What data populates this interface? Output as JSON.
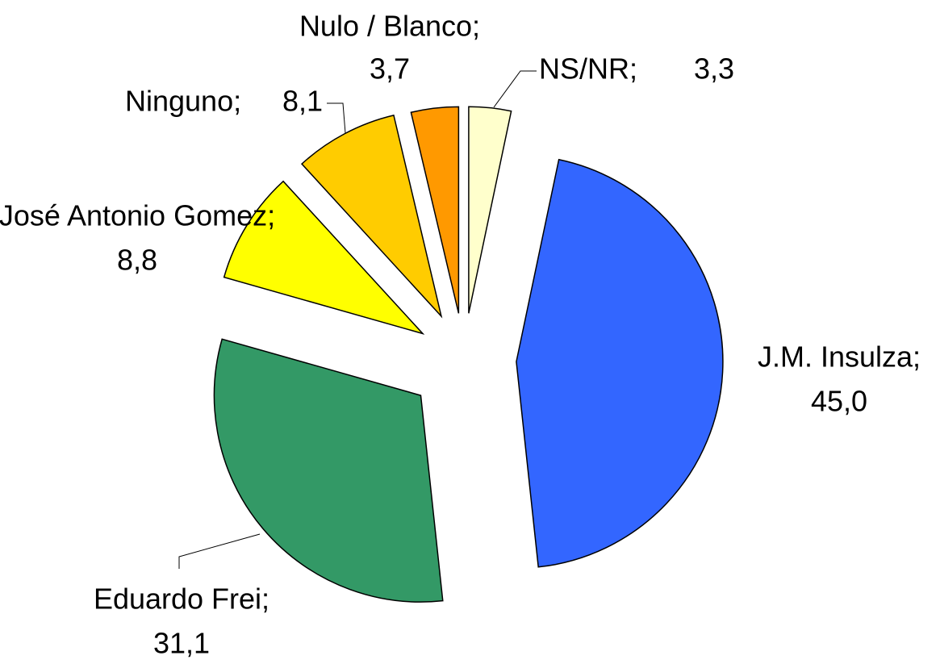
{
  "chart_data": {
    "type": "pie",
    "categories": [
      "NS/NR;",
      "J.M. Insulza;",
      "Eduardo Frei;",
      "José Antonio Gomez;",
      "Ninguno;",
      "Nulo / Blanco;"
    ],
    "values": [
      3.3,
      45.0,
      31.1,
      8.8,
      8.1,
      3.7
    ],
    "value_labels": [
      "3,3",
      "45,0",
      "31,1",
      "8,8",
      "8,1",
      "3,7"
    ],
    "colors": [
      "#ffffcc",
      "#3366ff",
      "#339966",
      "#ffff00",
      "#ffcc00",
      "#ff9900"
    ]
  }
}
